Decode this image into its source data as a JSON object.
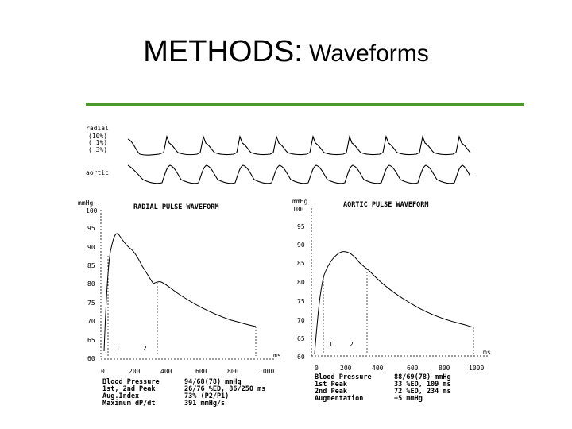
{
  "slide": {
    "title_main": "METHODS:",
    "title_sub": " Waveforms",
    "rule_color": "#4c9a2a"
  },
  "strip": {
    "radial_label": "radial",
    "radial_lines": [
      "(10%)",
      "( 1%)",
      "( 3%)"
    ],
    "aortic_label": "aortic"
  },
  "radial_panel": {
    "unit": "mmHg",
    "title": "RADIAL PULSE WAVEFORM",
    "y_ticks": [
      "100",
      "95",
      "90",
      "85",
      "80",
      "75",
      "70",
      "65",
      "60"
    ],
    "x_ticks": [
      "0",
      "200",
      "400",
      "600",
      "800",
      "1000"
    ],
    "x_unit": "ms",
    "markers": [
      "1",
      "2"
    ],
    "stats_labels": [
      "Blood Pressure",
      "1st, 2nd Peak",
      "Aug.Index",
      "Maximum dP/dt"
    ],
    "stats_values": [
      "94/68(78) mmHg",
      "26/76 %ED, 86/250 ms",
      "73% (P2/P1)",
      "391 mmHg/s"
    ]
  },
  "aortic_panel": {
    "unit": "mmHg",
    "title": "AORTIC PULSE WAVEFORM",
    "y_ticks": [
      "100",
      "95",
      "90",
      "85",
      "80",
      "75",
      "70",
      "65",
      "60"
    ],
    "x_ticks": [
      "0",
      "200",
      "400",
      "600",
      "800",
      "1000"
    ],
    "x_unit": "ms",
    "markers": [
      "1",
      "2"
    ],
    "stats_labels": [
      "Blood Pressure",
      "1st Peak",
      "2nd Peak",
      "Augmentation"
    ],
    "stats_values": [
      "88/69(78) mmHg",
      "33 %ED, 109 ms",
      "72 %ED, 234 ms",
      "+5 mmHg"
    ]
  }
}
